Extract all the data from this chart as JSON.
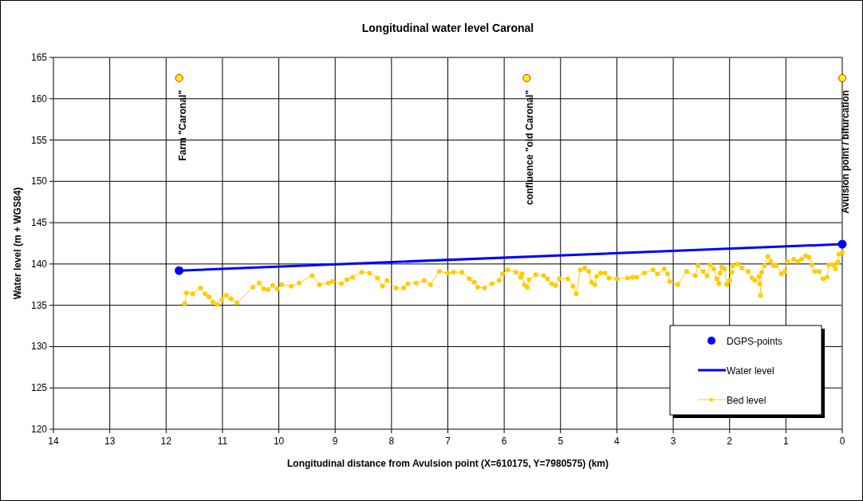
{
  "chart_data": {
    "type": "line",
    "title": "Longitudinal water level Caronal",
    "xlabel": "Longitudinal distance from Avulsion point (X=610175, Y=7980575) (km)",
    "ylabel": "Water level (m + WGS84)",
    "xlim": [
      14,
      0
    ],
    "xticks": [
      14,
      13,
      12,
      11,
      10,
      9,
      8,
      7,
      6,
      5,
      4,
      3,
      2,
      1,
      0
    ],
    "ylim": [
      120,
      165
    ],
    "yticks": [
      120,
      125,
      130,
      135,
      140,
      145,
      150,
      155,
      160,
      165
    ],
    "grid": true,
    "legend": "bottom right",
    "series": [
      {
        "name": "DGPS-points",
        "type": "scatter",
        "marker": "circle",
        "color": "#0000ff",
        "x": [
          11.77,
          0
        ],
        "values": [
          139.2,
          142.4
        ]
      },
      {
        "name": "Water level",
        "marker": "none",
        "color": "#0000ff",
        "x": [
          11.77,
          0
        ],
        "values": [
          139.2,
          142.4
        ]
      },
      {
        "name": "Bed level",
        "marker": "circle",
        "color": "#ffcc00",
        "x": [
          11.67,
          11.64,
          11.53,
          11.39,
          11.31,
          11.24,
          11.17,
          11.09,
          11.01,
          10.93,
          10.85,
          10.74,
          10.46,
          10.35,
          10.27,
          10.19,
          10.11,
          10.03,
          9.95,
          9.78,
          9.64,
          9.41,
          9.28,
          9.12,
          9.05,
          8.89,
          8.79,
          8.69,
          8.53,
          8.39,
          8.25,
          8.16,
          8.08,
          7.92,
          7.78,
          7.71,
          7.56,
          7.42,
          7.31,
          7.15,
          7.0,
          6.9,
          6.75,
          6.62,
          6.53,
          6.47,
          6.35,
          6.22,
          6.09,
          6.03,
          5.94,
          5.79,
          5.71,
          5.68,
          5.64,
          5.59,
          5.56,
          5.44,
          5.3,
          5.23,
          5.16,
          5.09,
          5.02,
          4.87,
          4.78,
          4.72,
          4.65,
          4.57,
          4.5,
          4.45,
          4.39,
          4.36,
          4.29,
          4.21,
          4.14,
          4.0,
          3.81,
          3.72,
          3.65,
          3.51,
          3.36,
          3.28,
          3.16,
          3.1,
          3.06,
          2.92,
          2.76,
          2.61,
          2.56,
          2.47,
          2.4,
          2.34,
          2.28,
          2.23,
          2.19,
          2.17,
          2.14,
          2.09,
          2.05,
          2.0,
          1.96,
          1.94,
          1.85,
          1.78,
          1.67,
          1.6,
          1.55,
          1.48,
          1.46,
          1.45,
          1.43,
          1.38,
          1.32,
          1.27,
          1.22,
          1.17,
          1.08,
          1.02,
          0.98,
          0.86,
          0.79,
          0.72,
          0.65,
          0.59,
          0.54,
          0.49,
          0.41,
          0.34,
          0.27,
          0.24,
          0.16,
          0.12,
          0.08,
          0.06,
          0.0
        ],
        "values": [
          135.2,
          136.5,
          136.4,
          137.1,
          136.4,
          136.0,
          135.4,
          135.1,
          135.7,
          136.2,
          135.8,
          135.3,
          137.2,
          137.7,
          137.0,
          136.9,
          137.4,
          137.0,
          137.5,
          137.3,
          137.7,
          138.6,
          137.5,
          137.7,
          137.9,
          137.6,
          138.1,
          138.4,
          139.0,
          138.9,
          138.3,
          137.3,
          138.0,
          137.1,
          137.1,
          137.6,
          137.7,
          138.0,
          137.5,
          139.1,
          138.9,
          139.0,
          139.0,
          138.2,
          137.8,
          137.2,
          137.1,
          137.6,
          138.0,
          138.8,
          139.3,
          139.0,
          138.4,
          138.8,
          137.5,
          137.2,
          138.1,
          138.7,
          138.6,
          138.2,
          137.6,
          137.4,
          138.2,
          138.2,
          137.3,
          136.4,
          139.3,
          139.5,
          139.1,
          137.8,
          137.5,
          138.5,
          138.9,
          138.9,
          138.3,
          138.2,
          138.3,
          138.4,
          138.4,
          138.9,
          139.3,
          138.8,
          139.4,
          138.8,
          137.9,
          137.5,
          139.1,
          138.6,
          139.8,
          139.1,
          138.6,
          139.9,
          139.4,
          138.2,
          137.6,
          138.9,
          139.6,
          139.4,
          137.5,
          138.0,
          139.0,
          139.8,
          140.0,
          139.5,
          139.1,
          138.3,
          138.0,
          138.5,
          137.6,
          136.2,
          139.0,
          139.8,
          140.9,
          140.3,
          139.8,
          139.8,
          138.8,
          139.1,
          140.3,
          140.6,
          140.3,
          140.6,
          141.0,
          140.8,
          139.9,
          139.1,
          139.1,
          138.2,
          138.4,
          139.9,
          139.9,
          139.4,
          140.2,
          141.2,
          141.4
        ]
      },
      {
        "type": "scatter",
        "marker": "circle",
        "color": "#ffff00",
        "x": [
          11.77,
          5.6,
          0
        ],
        "values": [
          162.5,
          162.5,
          162.5
        ]
      }
    ],
    "annotations": [
      {
        "text": "Farm \"Caronal\"",
        "x": 11.77,
        "y": 162.5
      },
      {
        "text": "confluence \"old Caronal\"",
        "x": 5.6,
        "y": 162.5
      },
      {
        "text": "Avulsion point / bifurcation",
        "x": 0,
        "y": 162.5
      }
    ]
  }
}
